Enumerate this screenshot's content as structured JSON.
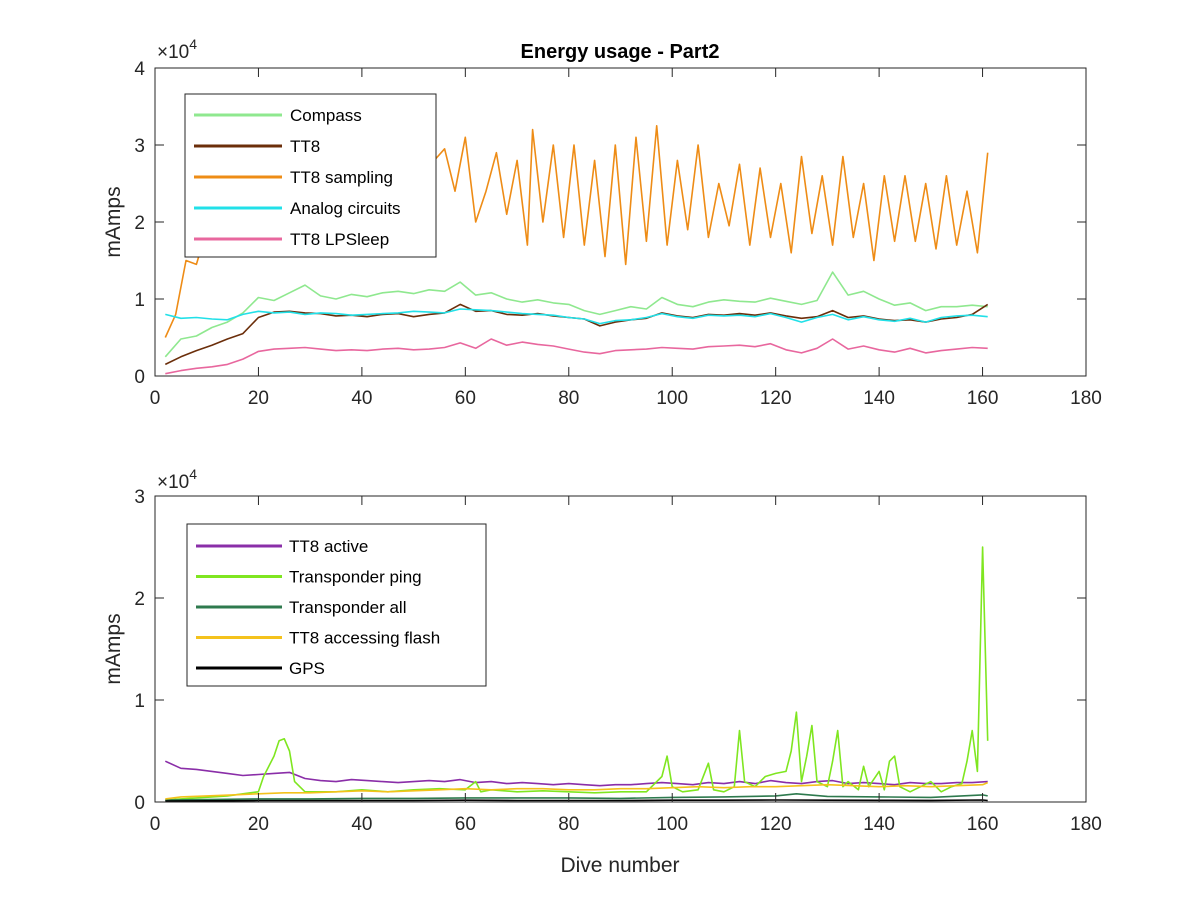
{
  "figure": {
    "title": "Energy usage - Part2",
    "xlabel": "Dive number"
  },
  "chart_data": [
    {
      "type": "line",
      "title": "Energy usage - Part2",
      "xlabel": "",
      "ylabel": "mAmps",
      "xlim": [
        0,
        180
      ],
      "ylim": [
        0,
        40000
      ],
      "xticks": [
        0,
        20,
        40,
        60,
        80,
        100,
        120,
        140,
        160,
        180
      ],
      "yticks": [
        0,
        10000,
        20000,
        30000,
        40000
      ],
      "ytick_labels": [
        "0",
        "1",
        "2",
        "3",
        "4"
      ],
      "exponent_base": "×10",
      "exponent_power": "4",
      "legend_position": "top-left",
      "grid": false,
      "series": [
        {
          "name": "Compass",
          "color": "#8fe88f",
          "x": [
            2,
            5,
            8,
            11,
            14,
            17,
            20,
            23,
            26,
            29,
            32,
            35,
            38,
            41,
            44,
            47,
            50,
            53,
            56,
            59,
            62,
            65,
            68,
            71,
            74,
            77,
            80,
            83,
            86,
            89,
            92,
            95,
            98,
            101,
            104,
            107,
            110,
            113,
            116,
            119,
            122,
            125,
            128,
            131,
            134,
            137,
            140,
            143,
            146,
            149,
            152,
            155,
            158,
            161
          ],
          "y": [
            2500,
            4800,
            5200,
            6300,
            7000,
            8200,
            10200,
            9800,
            10800,
            11800,
            10400,
            10000,
            10600,
            10300,
            10800,
            11000,
            10700,
            11200,
            11000,
            12200,
            10500,
            10800,
            10000,
            9600,
            9900,
            9500,
            9300,
            8500,
            8000,
            8500,
            9000,
            8700,
            10200,
            9300,
            9000,
            9600,
            9900,
            9700,
            9600,
            10100,
            9700,
            9300,
            9800,
            13500,
            10500,
            11000,
            10000,
            9200,
            9500,
            8500,
            9000,
            9000,
            9200,
            9000
          ]
        },
        {
          "name": "TT8",
          "color": "#6b2e0a",
          "x": [
            2,
            5,
            8,
            11,
            14,
            17,
            20,
            23,
            26,
            29,
            32,
            35,
            38,
            41,
            44,
            47,
            50,
            53,
            56,
            59,
            62,
            65,
            68,
            71,
            74,
            77,
            80,
            83,
            86,
            89,
            92,
            95,
            98,
            101,
            104,
            107,
            110,
            113,
            116,
            119,
            122,
            125,
            128,
            131,
            134,
            137,
            140,
            143,
            146,
            149,
            152,
            155,
            158,
            161
          ],
          "y": [
            1500,
            2500,
            3300,
            4000,
            4800,
            5500,
            7600,
            8300,
            8400,
            8200,
            8100,
            7800,
            7900,
            7700,
            8000,
            8100,
            7700,
            8000,
            8200,
            9300,
            8400,
            8500,
            8000,
            7900,
            8100,
            7800,
            7600,
            7400,
            6500,
            7000,
            7300,
            7500,
            8200,
            7800,
            7600,
            8000,
            7900,
            8100,
            7900,
            8200,
            7800,
            7500,
            7700,
            8500,
            7600,
            7800,
            7400,
            7200,
            7300,
            7000,
            7400,
            7600,
            8000,
            9300
          ]
        },
        {
          "name": "TT8 sampling",
          "color": "#ee8c16",
          "x": [
            2,
            4,
            6,
            8,
            10,
            12,
            14,
            16,
            18,
            20,
            22,
            24,
            26,
            28,
            30,
            32,
            34,
            36,
            38,
            40,
            42,
            44,
            46,
            48,
            50,
            52,
            54,
            56,
            58,
            60,
            62,
            64,
            66,
            68,
            70,
            72,
            73,
            75,
            77,
            79,
            81,
            83,
            85,
            87,
            89,
            91,
            93,
            95,
            97,
            99,
            101,
            103,
            105,
            107,
            109,
            111,
            113,
            115,
            117,
            119,
            121,
            123,
            125,
            127,
            129,
            131,
            133,
            135,
            137,
            139,
            141,
            143,
            145,
            147,
            149,
            151,
            153,
            155,
            157,
            159,
            161
          ],
          "y": [
            5000,
            8000,
            15000,
            14500,
            19000,
            21000,
            23000,
            22000,
            24000,
            25500,
            26000,
            28500,
            26000,
            24000,
            27000,
            25000,
            28000,
            26000,
            25000,
            27500,
            25500,
            24000,
            27000,
            26000,
            27500,
            29000,
            28000,
            29500,
            24000,
            31000,
            20000,
            24000,
            29000,
            21000,
            28000,
            17000,
            32000,
            20000,
            30000,
            18000,
            30000,
            17000,
            28000,
            15500,
            30000,
            14500,
            31000,
            17500,
            32500,
            17000,
            28000,
            19000,
            30000,
            18000,
            25000,
            19500,
            27500,
            17000,
            27000,
            18000,
            25000,
            16000,
            28500,
            18500,
            26000,
            17000,
            28500,
            18000,
            25000,
            15000,
            26000,
            17500,
            26000,
            17500,
            25000,
            16500,
            26000,
            17000,
            24000,
            16000,
            29000
          ]
        },
        {
          "name": "Analog circuits",
          "color": "#21e0e8",
          "x": [
            2,
            5,
            8,
            11,
            14,
            17,
            20,
            23,
            26,
            29,
            32,
            35,
            38,
            41,
            44,
            47,
            50,
            53,
            56,
            59,
            62,
            65,
            68,
            71,
            74,
            77,
            80,
            83,
            86,
            89,
            92,
            95,
            98,
            101,
            104,
            107,
            110,
            113,
            116,
            119,
            122,
            125,
            128,
            131,
            134,
            137,
            140,
            143,
            146,
            149,
            152,
            155,
            158,
            161
          ],
          "y": [
            8000,
            7500,
            7600,
            7400,
            7300,
            8000,
            8400,
            8200,
            8300,
            8000,
            8200,
            8100,
            7900,
            8000,
            8100,
            8200,
            8400,
            8300,
            8200,
            8700,
            8600,
            8500,
            8300,
            8100,
            8000,
            7900,
            7600,
            7400,
            6800,
            7200,
            7300,
            7600,
            8100,
            7700,
            7500,
            7900,
            7800,
            7900,
            7700,
            8100,
            7600,
            7000,
            7600,
            8000,
            7300,
            7700,
            7300,
            7100,
            7500,
            7000,
            7600,
            7800,
            7900,
            7700
          ]
        },
        {
          "name": "TT8 LPSleep",
          "color": "#e8679e",
          "x": [
            2,
            5,
            8,
            11,
            14,
            17,
            20,
            23,
            26,
            29,
            32,
            35,
            38,
            41,
            44,
            47,
            50,
            53,
            56,
            59,
            62,
            65,
            68,
            71,
            74,
            77,
            80,
            83,
            86,
            89,
            92,
            95,
            98,
            101,
            104,
            107,
            110,
            113,
            116,
            119,
            122,
            125,
            128,
            131,
            134,
            137,
            140,
            143,
            146,
            149,
            152,
            155,
            158,
            161
          ],
          "y": [
            300,
            700,
            1000,
            1200,
            1500,
            2200,
            3200,
            3500,
            3600,
            3700,
            3500,
            3300,
            3400,
            3300,
            3500,
            3600,
            3400,
            3500,
            3700,
            4300,
            3600,
            4800,
            4000,
            4400,
            4100,
            3900,
            3500,
            3100,
            2900,
            3300,
            3400,
            3500,
            3700,
            3600,
            3500,
            3800,
            3900,
            4000,
            3800,
            4200,
            3400,
            3000,
            3600,
            4800,
            3500,
            3900,
            3400,
            3100,
            3600,
            3000,
            3300,
            3500,
            3700,
            3600
          ]
        }
      ]
    },
    {
      "type": "line",
      "title": "",
      "xlabel": "Dive number",
      "ylabel": "mAmps",
      "xlim": [
        0,
        180
      ],
      "ylim": [
        0,
        30000
      ],
      "xticks": [
        0,
        20,
        40,
        60,
        80,
        100,
        120,
        140,
        160,
        180
      ],
      "yticks": [
        0,
        10000,
        20000,
        30000
      ],
      "ytick_labels": [
        "0",
        "1",
        "2",
        "3"
      ],
      "exponent_base": "×10",
      "exponent_power": "4",
      "legend_position": "top-left",
      "grid": false,
      "series": [
        {
          "name": "TT8 active",
          "color": "#8a2ea8",
          "x": [
            2,
            5,
            8,
            11,
            14,
            17,
            20,
            23,
            26,
            29,
            32,
            35,
            38,
            41,
            44,
            47,
            50,
            53,
            56,
            59,
            62,
            65,
            68,
            71,
            74,
            77,
            80,
            83,
            86,
            89,
            92,
            95,
            98,
            101,
            104,
            107,
            110,
            113,
            116,
            119,
            122,
            125,
            128,
            131,
            134,
            137,
            140,
            143,
            146,
            149,
            152,
            155,
            158,
            161
          ],
          "y": [
            4000,
            3300,
            3200,
            3000,
            2800,
            2600,
            2700,
            2800,
            2900,
            2300,
            2100,
            2000,
            2200,
            2100,
            2000,
            1900,
            2000,
            2100,
            2000,
            2200,
            1900,
            2000,
            1800,
            1900,
            1800,
            1700,
            1800,
            1700,
            1600,
            1700,
            1700,
            1800,
            1900,
            1800,
            1700,
            1900,
            1800,
            2000,
            1800,
            2100,
            1900,
            1800,
            2000,
            2100,
            1800,
            1900,
            1800,
            1700,
            1900,
            1800,
            1800,
            1900,
            1900,
            2000
          ]
        },
        {
          "name": "Transponder ping",
          "color": "#7fe620",
          "x": [
            2,
            5,
            8,
            11,
            14,
            17,
            20,
            21,
            23,
            24,
            25,
            26,
            27,
            29,
            35,
            40,
            45,
            50,
            55,
            60,
            62,
            63,
            65,
            70,
            75,
            80,
            85,
            90,
            95,
            98,
            99,
            100,
            102,
            105,
            107,
            108,
            110,
            112,
            113,
            114,
            116,
            118,
            120,
            122,
            123,
            124,
            125,
            126,
            127,
            128,
            130,
            131,
            132,
            133,
            134,
            136,
            137,
            138,
            140,
            141,
            142,
            143,
            144,
            146,
            148,
            150,
            152,
            154,
            156,
            157,
            158,
            159,
            160,
            161
          ],
          "y": [
            200,
            300,
            400,
            500,
            600,
            800,
            1000,
            2500,
            4500,
            6000,
            6200,
            5000,
            2000,
            1000,
            1000,
            1200,
            1000,
            1200,
            1300,
            1200,
            2000,
            1000,
            1200,
            1000,
            1100,
            1000,
            900,
            1000,
            1000,
            2500,
            4500,
            1500,
            1000,
            1200,
            3800,
            1200,
            1000,
            1500,
            7000,
            2000,
            1500,
            2500,
            2800,
            3000,
            5000,
            8800,
            2000,
            4500,
            7500,
            2000,
            1500,
            4000,
            7000,
            1500,
            2000,
            1200,
            3500,
            1500,
            3000,
            1200,
            4000,
            4500,
            1500,
            1000,
            1500,
            2000,
            1000,
            1500,
            1800,
            4000,
            7000,
            3000,
            25000,
            6000
          ]
        },
        {
          "name": "Transponder all",
          "color": "#2e7a4e",
          "x": [
            2,
            10,
            20,
            30,
            40,
            50,
            60,
            70,
            80,
            90,
            100,
            110,
            120,
            124,
            130,
            140,
            150,
            160,
            161
          ],
          "y": [
            200,
            250,
            300,
            300,
            350,
            350,
            400,
            400,
            400,
            350,
            450,
            500,
            600,
            800,
            550,
            500,
            450,
            700,
            600
          ]
        },
        {
          "name": "TT8 accessing flash",
          "color": "#f4c21c",
          "x": [
            2,
            5,
            10,
            15,
            20,
            25,
            30,
            35,
            40,
            45,
            50,
            55,
            60,
            65,
            70,
            75,
            80,
            85,
            90,
            95,
            100,
            105,
            110,
            115,
            120,
            125,
            130,
            135,
            140,
            145,
            150,
            155,
            160,
            161
          ],
          "y": [
            300,
            500,
            600,
            700,
            800,
            900,
            900,
            1000,
            1100,
            1000,
            1100,
            1200,
            1300,
            1200,
            1300,
            1300,
            1200,
            1200,
            1300,
            1300,
            1400,
            1500,
            1400,
            1500,
            1500,
            1600,
            1700,
            1600,
            1500,
            1600,
            1500,
            1600,
            1700,
            1900
          ]
        },
        {
          "name": "GPS",
          "color": "#000000",
          "x": [
            2,
            10,
            20,
            30,
            40,
            50,
            60,
            70,
            80,
            90,
            100,
            110,
            120,
            130,
            140,
            150,
            160,
            161
          ],
          "y": [
            100,
            120,
            150,
            150,
            150,
            150,
            180,
            150,
            150,
            150,
            180,
            180,
            200,
            180,
            170,
            160,
            200,
            150
          ]
        }
      ]
    }
  ]
}
